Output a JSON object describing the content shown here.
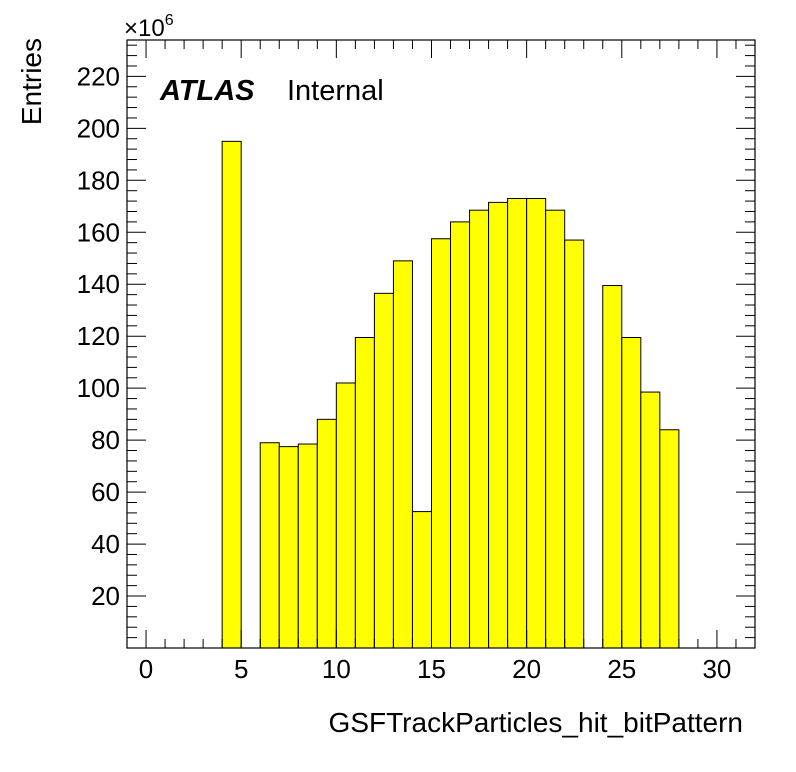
{
  "chart_data": {
    "type": "bar",
    "bin_edges": [
      -1,
      0,
      1,
      2,
      3,
      4,
      5,
      6,
      7,
      8,
      9,
      10,
      11,
      12,
      13,
      14,
      15,
      16,
      17,
      18,
      19,
      20,
      21,
      22,
      23,
      24,
      25,
      26,
      27,
      28,
      29,
      30,
      31,
      32
    ],
    "values": [
      0,
      0,
      0,
      0,
      0,
      195,
      0,
      79,
      77.5,
      78.5,
      88,
      102,
      119.5,
      136.5,
      149,
      52.5,
      157.5,
      164,
      168.5,
      171.5,
      173,
      173,
      168.5,
      157,
      0,
      139.5,
      119.5,
      98.5,
      84,
      0,
      0,
      0,
      0
    ],
    "xlabel": "GSFTrackParticles_hit_bitPattern",
    "ylabel": "Entries",
    "xlim": [
      -1,
      32
    ],
    "ylim": [
      0,
      234
    ],
    "x_ticks": [
      "0",
      "5",
      "10",
      "15",
      "20",
      "25",
      "30"
    ],
    "y_ticks": [
      "20",
      "40",
      "60",
      "80",
      "100",
      "120",
      "140",
      "160",
      "180",
      "200",
      "220"
    ],
    "y_multiplier": {
      "base": "×10",
      "exponent": "6"
    },
    "fill_color": "#ffff00",
    "line_color": "#000000",
    "grid": false
  },
  "labels": {
    "experiment": "ATLAS",
    "status": "Internal"
  }
}
